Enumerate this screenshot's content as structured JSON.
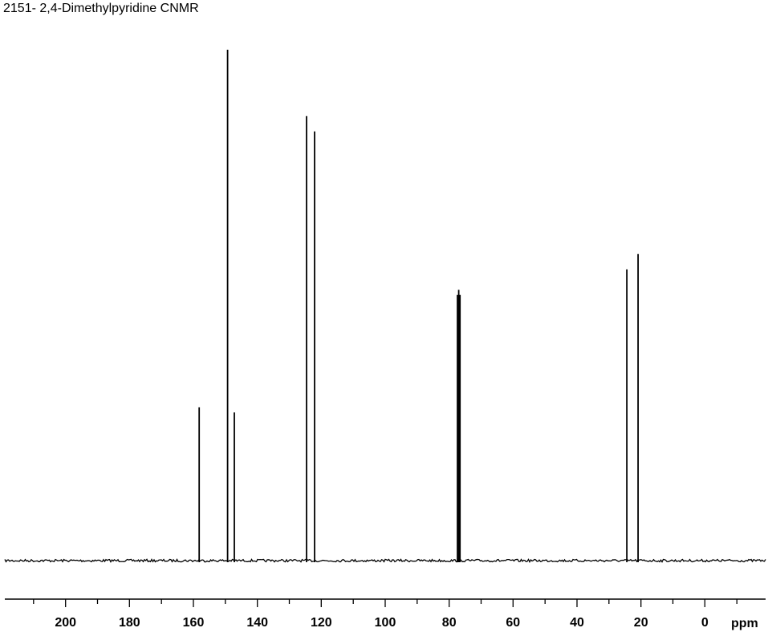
{
  "chart_data": {
    "type": "line",
    "title": "2151- 2,4-Dimethylpyridine CNMR",
    "xlabel": "ppm",
    "ylabel": "",
    "x_axis_reversed": true,
    "xlim": [
      219,
      -19
    ],
    "ylim": [
      0,
      1
    ],
    "grid": false,
    "legend": "none",
    "tick_values": [
      200,
      180,
      160,
      140,
      120,
      100,
      80,
      60,
      40,
      20,
      0
    ],
    "tick_labels": [
      "200",
      "180",
      "160",
      "140",
      "120",
      "100",
      "80",
      "60",
      "40",
      "20",
      "0"
    ],
    "series": [
      {
        "peaks": [
          {
            "shift": 158.2,
            "intensity": 0.3
          },
          {
            "shift": 149.3,
            "intensity": 1.0
          },
          {
            "shift": 147.2,
            "intensity": 0.29
          },
          {
            "shift": 124.6,
            "intensity": 0.87
          },
          {
            "shift": 122.1,
            "intensity": 0.84
          },
          {
            "shift": 77.4,
            "intensity": 0.52
          },
          {
            "shift": 77.0,
            "intensity": 0.53
          },
          {
            "shift": 76.6,
            "intensity": 0.52
          },
          {
            "shift": 24.4,
            "intensity": 0.57
          },
          {
            "shift": 20.9,
            "intensity": 0.6
          }
        ]
      }
    ],
    "line_color": "#000000"
  }
}
